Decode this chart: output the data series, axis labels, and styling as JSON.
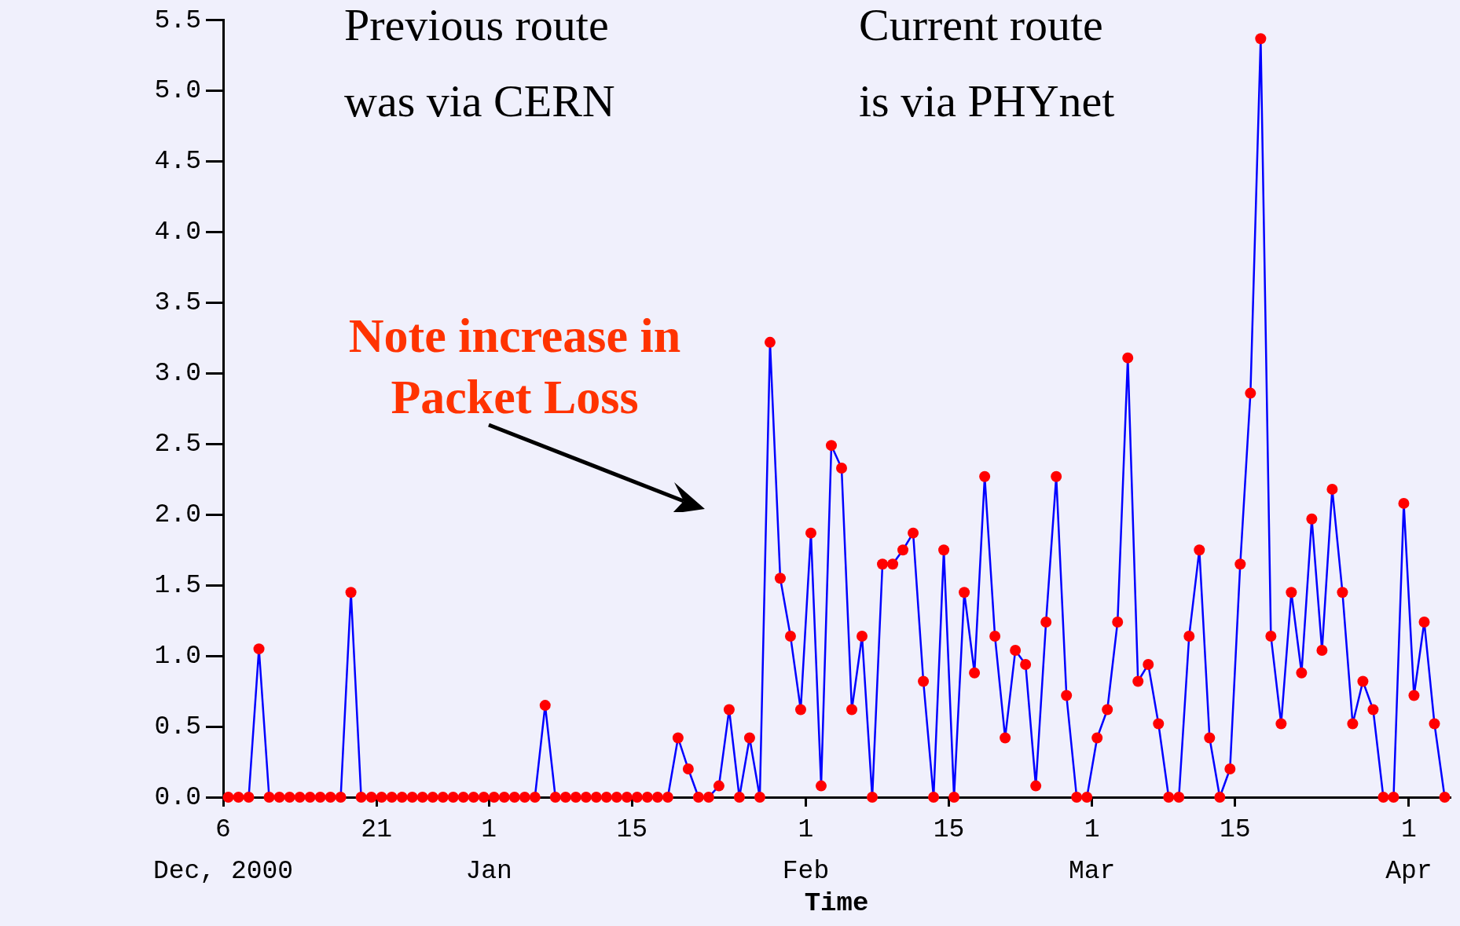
{
  "chart_data": {
    "type": "line",
    "xlabel": "Time",
    "annotations": [
      "Previous route\nwas via CERN",
      "Current route\nis via PHYnet",
      "Note increase in\nPacket Loss"
    ],
    "x": [
      "2000-12-06T12:00",
      "2000-12-07T12:00",
      "2000-12-08T12:00",
      "2000-12-09T12:00",
      "2000-12-10T12:00",
      "2000-12-11T12:00",
      "2000-12-12T12:00",
      "2000-12-13T12:00",
      "2000-12-14T12:00",
      "2000-12-15T12:00",
      "2000-12-16T12:00",
      "2000-12-17T12:00",
      "2000-12-18T12:00",
      "2000-12-19T12:00",
      "2000-12-20T12:00",
      "2000-12-21T12:00",
      "2000-12-22T12:00",
      "2000-12-23T12:00",
      "2000-12-24T12:00",
      "2000-12-25T12:00",
      "2000-12-26T12:00",
      "2000-12-27T12:00",
      "2000-12-28T12:00",
      "2000-12-29T12:00",
      "2000-12-30T12:00",
      "2000-12-31T12:00",
      "2001-01-01T12:00",
      "2001-01-02T12:00",
      "2001-01-03T12:00",
      "2001-01-04T12:00",
      "2001-01-05T12:00",
      "2001-01-06T12:00",
      "2001-01-07T12:00",
      "2001-01-08T12:00",
      "2001-01-09T12:00",
      "2001-01-10T12:00",
      "2001-01-11T12:00",
      "2001-01-12T12:00",
      "2001-01-13T12:00",
      "2001-01-14T12:00",
      "2001-01-15T12:00",
      "2001-01-16T12:00",
      "2001-01-17T12:00",
      "2001-01-18T12:00",
      "2001-01-19T12:00",
      "2001-01-20T12:00",
      "2001-01-21T12:00",
      "2001-01-22T12:00",
      "2001-01-23T12:00",
      "2001-01-24T12:00",
      "2001-01-25T12:00",
      "2001-01-26T12:00",
      "2001-01-27T12:00",
      "2001-01-28T12:00",
      "2001-01-29T12:00",
      "2001-01-30T12:00",
      "2001-01-31T12:00",
      "2001-02-01T12:00",
      "2001-02-02T12:00",
      "2001-02-03T12:00",
      "2001-02-04T12:00",
      "2001-02-05T12:00",
      "2001-02-06T12:00",
      "2001-02-07T12:00",
      "2001-02-08T12:00",
      "2001-02-09T12:00",
      "2001-02-10T12:00",
      "2001-02-11T12:00",
      "2001-02-12T12:00",
      "2001-02-13T12:00",
      "2001-02-14T12:00",
      "2001-02-15T12:00",
      "2001-02-16T12:00",
      "2001-02-17T12:00",
      "2001-02-18T12:00",
      "2001-02-19T12:00",
      "2001-02-20T12:00",
      "2001-02-21T12:00",
      "2001-02-22T12:00",
      "2001-02-23T12:00",
      "2001-02-24T12:00",
      "2001-02-25T12:00",
      "2001-02-26T12:00",
      "2001-02-27T12:00",
      "2001-02-28T12:00",
      "2001-03-01T12:00",
      "2001-03-02T12:00",
      "2001-03-03T12:00",
      "2001-03-04T12:00",
      "2001-03-05T12:00",
      "2001-03-06T12:00",
      "2001-03-07T12:00",
      "2001-03-08T12:00",
      "2001-03-09T12:00",
      "2001-03-10T12:00",
      "2001-03-11T12:00",
      "2001-03-12T12:00",
      "2001-03-13T12:00",
      "2001-03-14T12:00",
      "2001-03-15T12:00",
      "2001-03-16T12:00",
      "2001-03-17T12:00",
      "2001-03-18T12:00",
      "2001-03-19T12:00",
      "2001-03-20T12:00",
      "2001-03-21T12:00",
      "2001-03-22T12:00",
      "2001-03-23T12:00",
      "2001-03-24T12:00",
      "2001-03-25T12:00",
      "2001-03-26T12:00",
      "2001-03-27T12:00",
      "2001-03-28T12:00",
      "2001-03-29T12:00",
      "2001-03-30T12:00",
      "2001-03-31T12:00",
      "2001-04-01T12:00",
      "2001-04-02T12:00",
      "2001-04-03T12:00",
      "2001-04-04T12:00"
    ],
    "values": [
      0,
      0,
      0,
      1.05,
      0,
      0,
      0,
      0,
      0,
      0,
      0,
      0,
      1.45,
      0,
      0,
      0,
      0,
      0,
      0,
      0,
      0,
      0,
      0,
      0,
      0,
      0,
      0,
      0,
      0,
      0,
      0,
      0.65,
      0,
      0,
      0,
      0,
      0,
      0,
      0,
      0,
      0,
      0,
      0,
      0,
      0.42,
      0.2,
      0,
      0,
      0.08,
      0.62,
      0,
      0.42,
      0,
      3.22,
      1.55,
      1.14,
      0.62,
      1.87,
      0.08,
      2.49,
      2.33,
      0.62,
      1.14,
      0,
      1.65,
      1.65,
      1.75,
      1.87,
      0.82,
      0,
      1.75,
      0,
      1.45,
      0.88,
      2.27,
      1.14,
      0.42,
      1.04,
      0.94,
      0.08,
      1.24,
      2.27,
      0.72,
      0,
      0,
      0.42,
      0.62,
      1.24,
      3.11,
      0.82,
      0.94,
      0.52,
      0,
      0,
      1.14,
      1.75,
      0.42,
      0,
      0.2,
      1.65,
      2.86,
      5.37,
      1.14,
      0.52,
      1.45,
      0.88,
      1.97,
      1.04,
      2.18,
      1.45,
      0.52,
      0.82,
      0.62,
      0,
      0,
      2.08,
      0.72,
      1.24,
      0.52,
      0
    ],
    "color": "#0000ff",
    "colors": [
      "#ff0000",
      "#ff0000",
      "#ff0000",
      "#ff0000",
      "#ff0000",
      "#ff0000",
      "#ff0000",
      "#ff0000",
      "#ff0000",
      "#ff0000",
      "#ff0000",
      "#ff0000",
      "#ff0000",
      "#ff0000",
      "#ff0000",
      "#ff0000",
      "#ff0000",
      "#ff0000",
      "#ff0000",
      "#ff0000",
      "#ff0000",
      "#ff0000",
      "#ff0000",
      "#ff0000",
      "#ff0000",
      "#ff0000",
      "#ff0000",
      "#ff0000",
      "#ff0000",
      "#ff0000",
      "#ff0000",
      "#ff0000",
      "#ff0000",
      "#ff0000",
      "#ff0000",
      "#ff0000",
      "#ff0000",
      "#ff0000",
      "#ff0000",
      "#ff0000",
      "#ff0000",
      "#ff0000",
      "#ff0000",
      "#ff0000",
      "#ff0000",
      "#ff0000",
      "#ff0000",
      "#ff0000",
      "#ff0000",
      "#ff0000",
      "#ff0000",
      "#ff0000",
      "#ff0000",
      "#ff0000",
      "#ff0000",
      "#ff0000",
      "#ff0000",
      "#ff0000",
      "#ff0000",
      "#ff0000",
      "#ff0000",
      "#ff0000",
      "#ff0000",
      "#ff0000",
      "#ff0000",
      "#ff0000",
      "#ff0000",
      "#ff0000",
      "#ff0000",
      "#ff0000",
      "#ff0000",
      "#ff0000",
      "#ff0000",
      "#ff0000",
      "#ff0000",
      "#ff0000",
      "#ff0000",
      "#ff0000",
      "#ff0000",
      "#ff0000",
      "#ff0000",
      "#ff0000",
      "#ff0000",
      "#ff0000",
      "#ff0000",
      "#ff0000",
      "#ff0000",
      "#ff0000",
      "#ff0000",
      "#ff0000",
      "#ff0000",
      "#ff0000",
      "#ff0000",
      "#ff0000",
      "#ff0000",
      "#ff0000",
      "#ff0000",
      "#ff0000",
      "#ff0000",
      "#ff0000",
      "#ff0000",
      "#ff0000",
      "#ff0000",
      "#ff0000",
      "#ff0000",
      "#ff0000",
      "#ff0000",
      "#ff0000",
      "#ff0000",
      "#ff0000",
      "#ff0000",
      "#ff0000",
      "#ff0000",
      "#ff0000",
      "#ff0000",
      "#ff0000",
      "#ff0000",
      "#ff0000",
      "#ff0000",
      "#ff0000"
    ],
    "marker": "circle",
    "line_style": "solid",
    "xlim": [
      "2000-12-06",
      "2001-04-05"
    ],
    "xticks": [
      {
        "value": "2000-12-06",
        "label": "6\nDec, 2000"
      },
      {
        "value": "2000-12-21",
        "label": "21"
      },
      {
        "value": "2001-01-01",
        "label": "1\nJan"
      },
      {
        "value": "2001-01-15",
        "label": "15"
      },
      {
        "value": "2001-02-01",
        "label": "1\nFeb"
      },
      {
        "value": "2001-02-15",
        "label": "15"
      },
      {
        "value": "2001-03-01",
        "label": "1\nMar"
      },
      {
        "value": "2001-03-15",
        "label": "15"
      },
      {
        "value": "2001-04-01",
        "label": "1\nApr"
      }
    ],
    "ylim": [
      0,
      5.5
    ],
    "yticks": [
      {
        "value": 0,
        "label": "0.0"
      },
      {
        "value": 0.5,
        "label": "0.5"
      },
      {
        "value": 1,
        "label": "1.0"
      },
      {
        "value": 1.5,
        "label": "1.5"
      },
      {
        "value": 2,
        "label": "2.0"
      },
      {
        "value": 2.5,
        "label": "2.5"
      },
      {
        "value": 3,
        "label": "3.0"
      },
      {
        "value": 3.5,
        "label": "3.5"
      },
      {
        "value": 4,
        "label": "4.0"
      },
      {
        "value": 4.5,
        "label": "4.5"
      },
      {
        "value": 5,
        "label": "5.0"
      },
      {
        "value": 5.5,
        "label": "5.5"
      }
    ]
  }
}
